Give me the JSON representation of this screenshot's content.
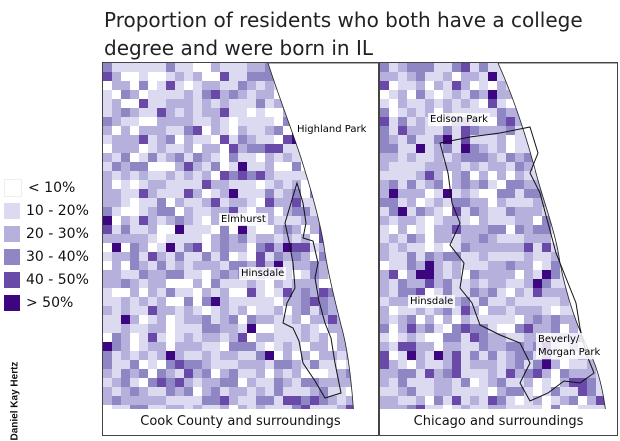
{
  "title": "Proportion of residents who both have a college degree and were born in IL",
  "credit": "Daniel Kay Hertz",
  "legend": [
    {
      "label": "< 10%",
      "color": "#ffffff"
    },
    {
      "label": "10 - 20%",
      "color": "#dcdaf0"
    },
    {
      "label": "20 - 30%",
      "color": "#b5b1dc"
    },
    {
      "label": "30 - 40%",
      "color": "#8f87c4"
    },
    {
      "label": "40 - 50%",
      "color": "#6a4aa9"
    },
    {
      "label": "> 50%",
      "color": "#3d0580"
    }
  ],
  "maps": [
    {
      "caption": "Cook County and surroundings",
      "places": [
        {
          "name": "Highland Park"
        },
        {
          "name": "Elmhurst"
        },
        {
          "name": "Hinsdale"
        }
      ]
    },
    {
      "caption": "Chicago and surroundings",
      "places": [
        {
          "name": "Edison Park"
        },
        {
          "name": "Hinsdale"
        },
        {
          "name": "Beverly/\nMorgan Park"
        }
      ]
    }
  ]
}
